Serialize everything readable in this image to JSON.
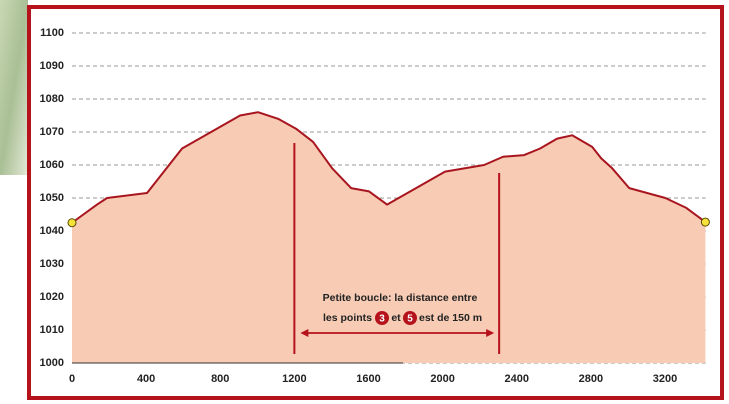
{
  "chart_data": {
    "type": "area",
    "x": [
      0,
      135,
      189,
      405,
      594,
      907,
      1004,
      1112,
      1209,
      1301,
      1404,
      1506,
      1603,
      1700,
      2013,
      2224,
      2326,
      2440,
      2526,
      2618,
      2699,
      2807,
      2856,
      2915,
      3007,
      3202,
      3315,
      3418
    ],
    "values": [
      1042.5,
      1048,
      1050,
      1051.5,
      1065,
      1075,
      1076,
      1074,
      1071,
      1067,
      1059,
      1053,
      1052,
      1048,
      1058,
      1060,
      1062.5,
      1063,
      1065,
      1068,
      1069,
      1065.5,
      1062,
      1059,
      1053,
      1050,
      1047,
      1042.7
    ],
    "color": "#a8151e",
    "fill_color": "#f7cbb4",
    "xlim": [
      0,
      3420
    ],
    "xticks": [
      0,
      400,
      800,
      1200,
      1600,
      2000,
      2400,
      2800,
      3200
    ],
    "ylim": [
      1000,
      1100
    ],
    "yticks": [
      1000,
      1010,
      1020,
      1030,
      1040,
      1050,
      1060,
      1070,
      1080,
      1090,
      1100
    ],
    "grid": true,
    "markers_x": [
      1200,
      2305
    ],
    "annotation": {
      "line1": "Petite boucle: la distance entre",
      "line2_start": "les points",
      "point_a": "3",
      "between": "et",
      "point_b": "5",
      "line2_end": "est de 150 m"
    }
  }
}
